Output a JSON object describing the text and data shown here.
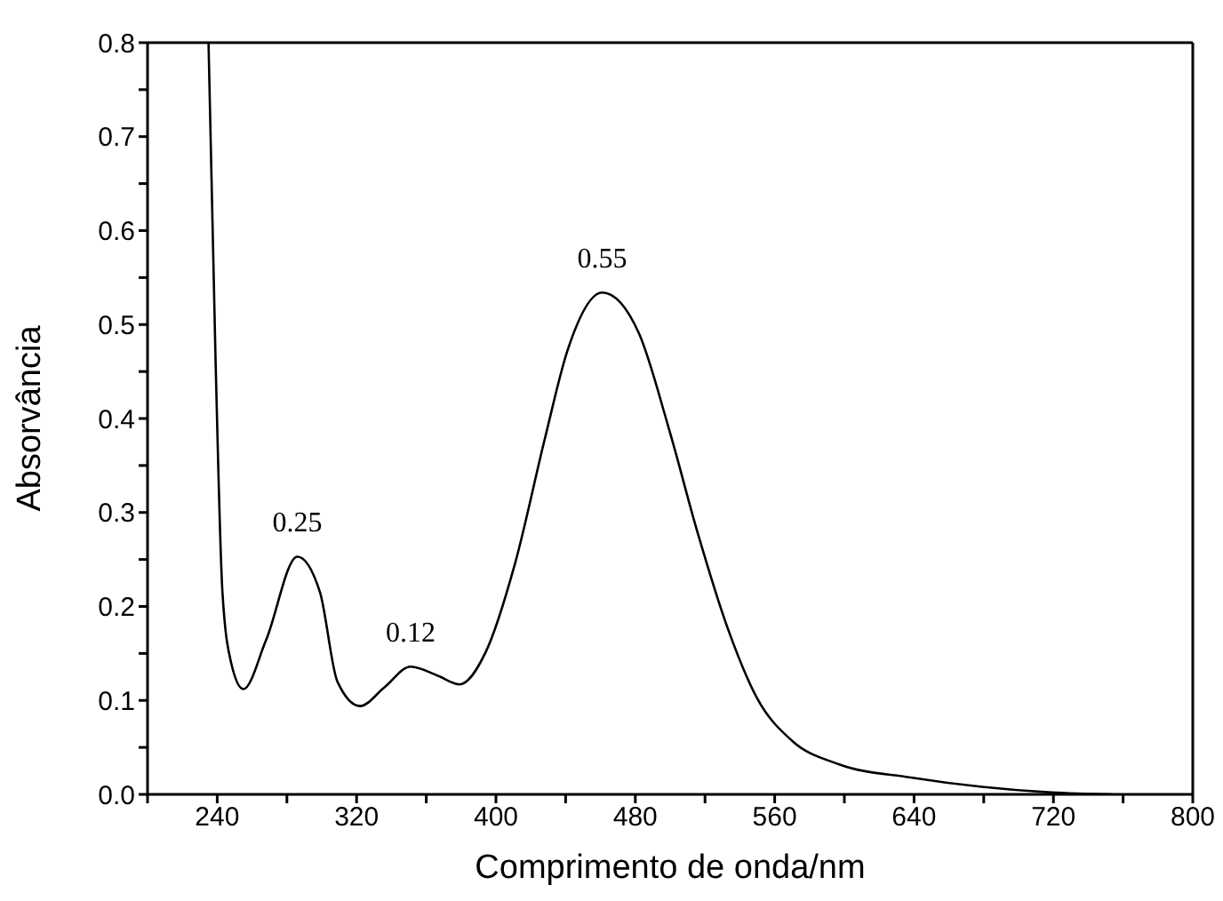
{
  "chart_data": {
    "type": "line",
    "xlabel": "Comprimento de onda/nm",
    "ylabel": "Absorvância",
    "x": [
      235,
      239,
      243,
      248,
      255,
      268,
      286,
      299,
      309,
      322,
      336,
      351,
      367,
      379,
      394,
      411,
      428,
      441,
      461,
      482,
      499,
      516,
      533,
      550,
      570,
      597,
      638,
      679,
      719,
      754
    ],
    "series": [
      {
        "color": "#000000",
        "values": [
          0.8,
          0.466,
          0.215,
          0.14,
          0.112,
          0.164,
          0.253,
          0.215,
          0.12,
          0.094,
          0.114,
          0.136,
          0.126,
          0.117,
          0.151,
          0.246,
          0.378,
          0.472,
          0.534,
          0.491,
          0.391,
          0.277,
          0.177,
          0.102,
          0.057,
          0.032,
          0.018,
          0.008,
          0.002,
          0.0
        ]
      }
    ],
    "xlim": [
      200,
      800
    ],
    "ylim": [
      0,
      0.8
    ],
    "xticks": [
      {
        "value": 200,
        "label": null
      },
      240,
      {
        "value": 280,
        "label": null
      },
      320,
      {
        "value": 360,
        "label": null
      },
      400,
      {
        "value": 440,
        "label": null
      },
      480,
      {
        "value": 520,
        "label": null
      },
      560,
      {
        "value": 600,
        "label": null
      },
      640,
      {
        "value": 680,
        "label": null
      },
      720,
      {
        "value": 760,
        "label": null
      },
      800
    ],
    "yticks": [
      {
        "value": 0,
        "label": "0.0"
      },
      {
        "value": 0.05,
        "label": null
      },
      {
        "value": 0.1,
        "label": "0.1"
      },
      {
        "value": 0.15,
        "label": null
      },
      {
        "value": 0.2,
        "label": "0.2"
      },
      {
        "value": 0.25,
        "label": null
      },
      {
        "value": 0.3,
        "label": "0.3"
      },
      {
        "value": 0.35,
        "label": null
      },
      {
        "value": 0.4,
        "label": "0.4"
      },
      {
        "value": 0.45,
        "label": null
      },
      {
        "value": 0.5,
        "label": "0.5"
      },
      {
        "value": 0.55,
        "label": null
      },
      {
        "value": 0.6,
        "label": "0.6"
      },
      {
        "value": 0.65,
        "label": null
      },
      {
        "value": 0.7,
        "label": "0.7"
      },
      {
        "value": 0.75,
        "label": null
      },
      {
        "value": 0.8,
        "label": "0.8"
      }
    ],
    "annotations": [
      {
        "text": "0.25",
        "x": 286,
        "y": 0.253
      },
      {
        "text": "0.12",
        "x": 351,
        "y": 0.136
      },
      {
        "text": "0.55",
        "x": 461,
        "y": 0.534
      }
    ],
    "grid": false,
    "legend": false,
    "marker": "none",
    "line_style": "solid"
  }
}
